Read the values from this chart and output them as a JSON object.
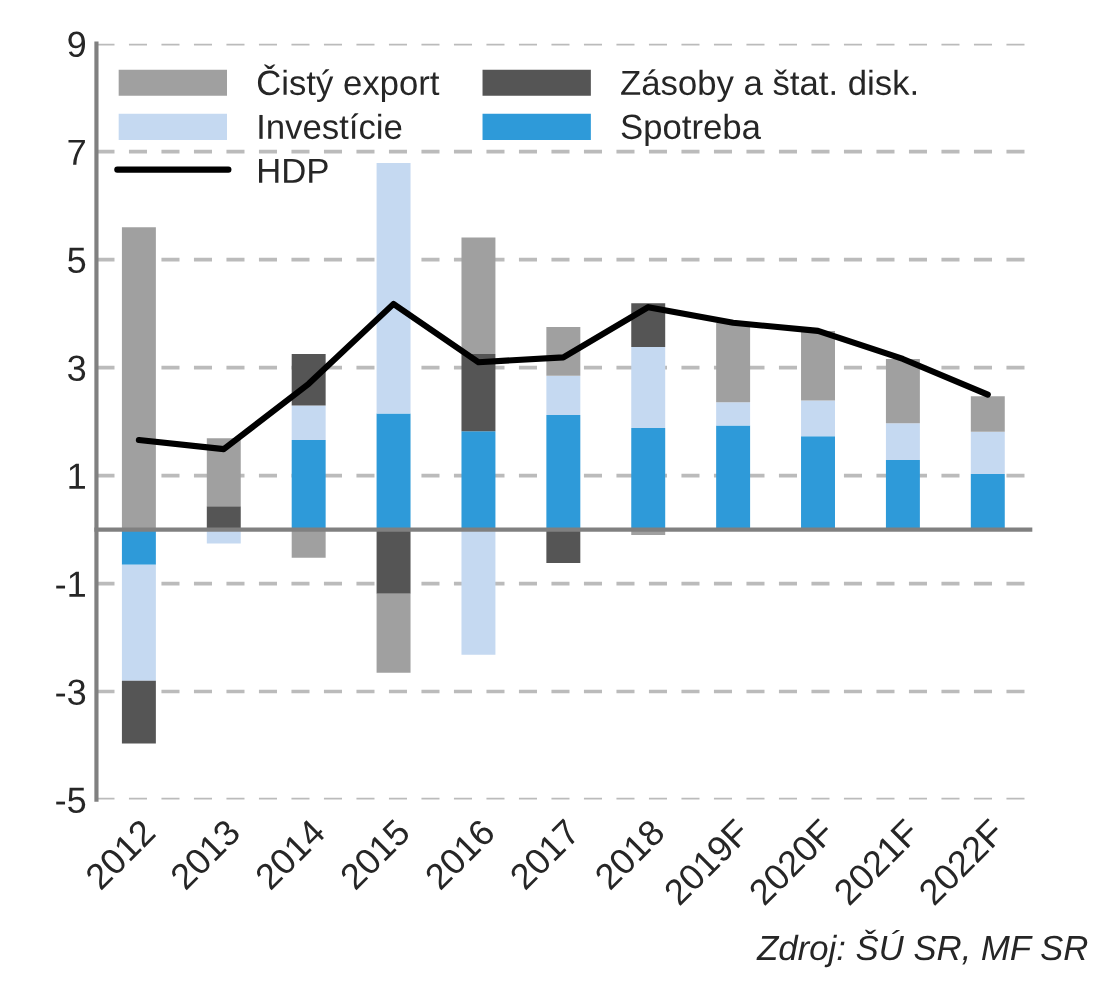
{
  "chart_data": {
    "type": "bar",
    "stacked": true,
    "categories": [
      "2012",
      "2013",
      "2014",
      "2015",
      "2016",
      "2017",
      "2018",
      "2019F",
      "2020F",
      "2021F",
      "2022F"
    ],
    "series": [
      {
        "name": "Spotreba",
        "color": "#2e9ad9",
        "values": [
          -0.65,
          null,
          1.66,
          2.15,
          1.82,
          2.12,
          1.88,
          1.93,
          1.73,
          1.29,
          1.03
        ]
      },
      {
        "name": "Investície",
        "color": "#c5d9f1",
        "values": [
          -2.15,
          -0.26,
          0.64,
          4.64,
          -2.32,
          0.73,
          1.5,
          0.43,
          0.66,
          0.68,
          0.78
        ]
      },
      {
        "name": "Zásoby a štat. disk.",
        "color": "#555555",
        "values": [
          -1.16,
          0.43,
          0.95,
          -1.19,
          1.43,
          -0.62,
          0.81,
          null,
          null,
          null,
          null
        ]
      },
      {
        "name": "Čistý export",
        "color": "#a0a0a0",
        "values": [
          5.6,
          1.26,
          -0.52,
          -1.46,
          2.16,
          0.9,
          -0.1,
          1.47,
          1.29,
          1.19,
          0.66
        ]
      },
      {
        "name": "HDP",
        "type": "line",
        "color": "#000000",
        "values": [
          1.66,
          1.49,
          2.7,
          4.18,
          3.1,
          3.19,
          4.12,
          3.83,
          3.68,
          3.16,
          2.5
        ]
      }
    ],
    "ylim": [
      -5,
      9
    ],
    "yticks": [
      -5,
      -3,
      -1,
      1,
      3,
      5,
      7,
      9
    ],
    "grid": "y",
    "legend": "top left",
    "marker": "none",
    "line_style": "solid",
    "annotations": [
      "Zdroj: ŠÚ SR, MF SR"
    ]
  }
}
